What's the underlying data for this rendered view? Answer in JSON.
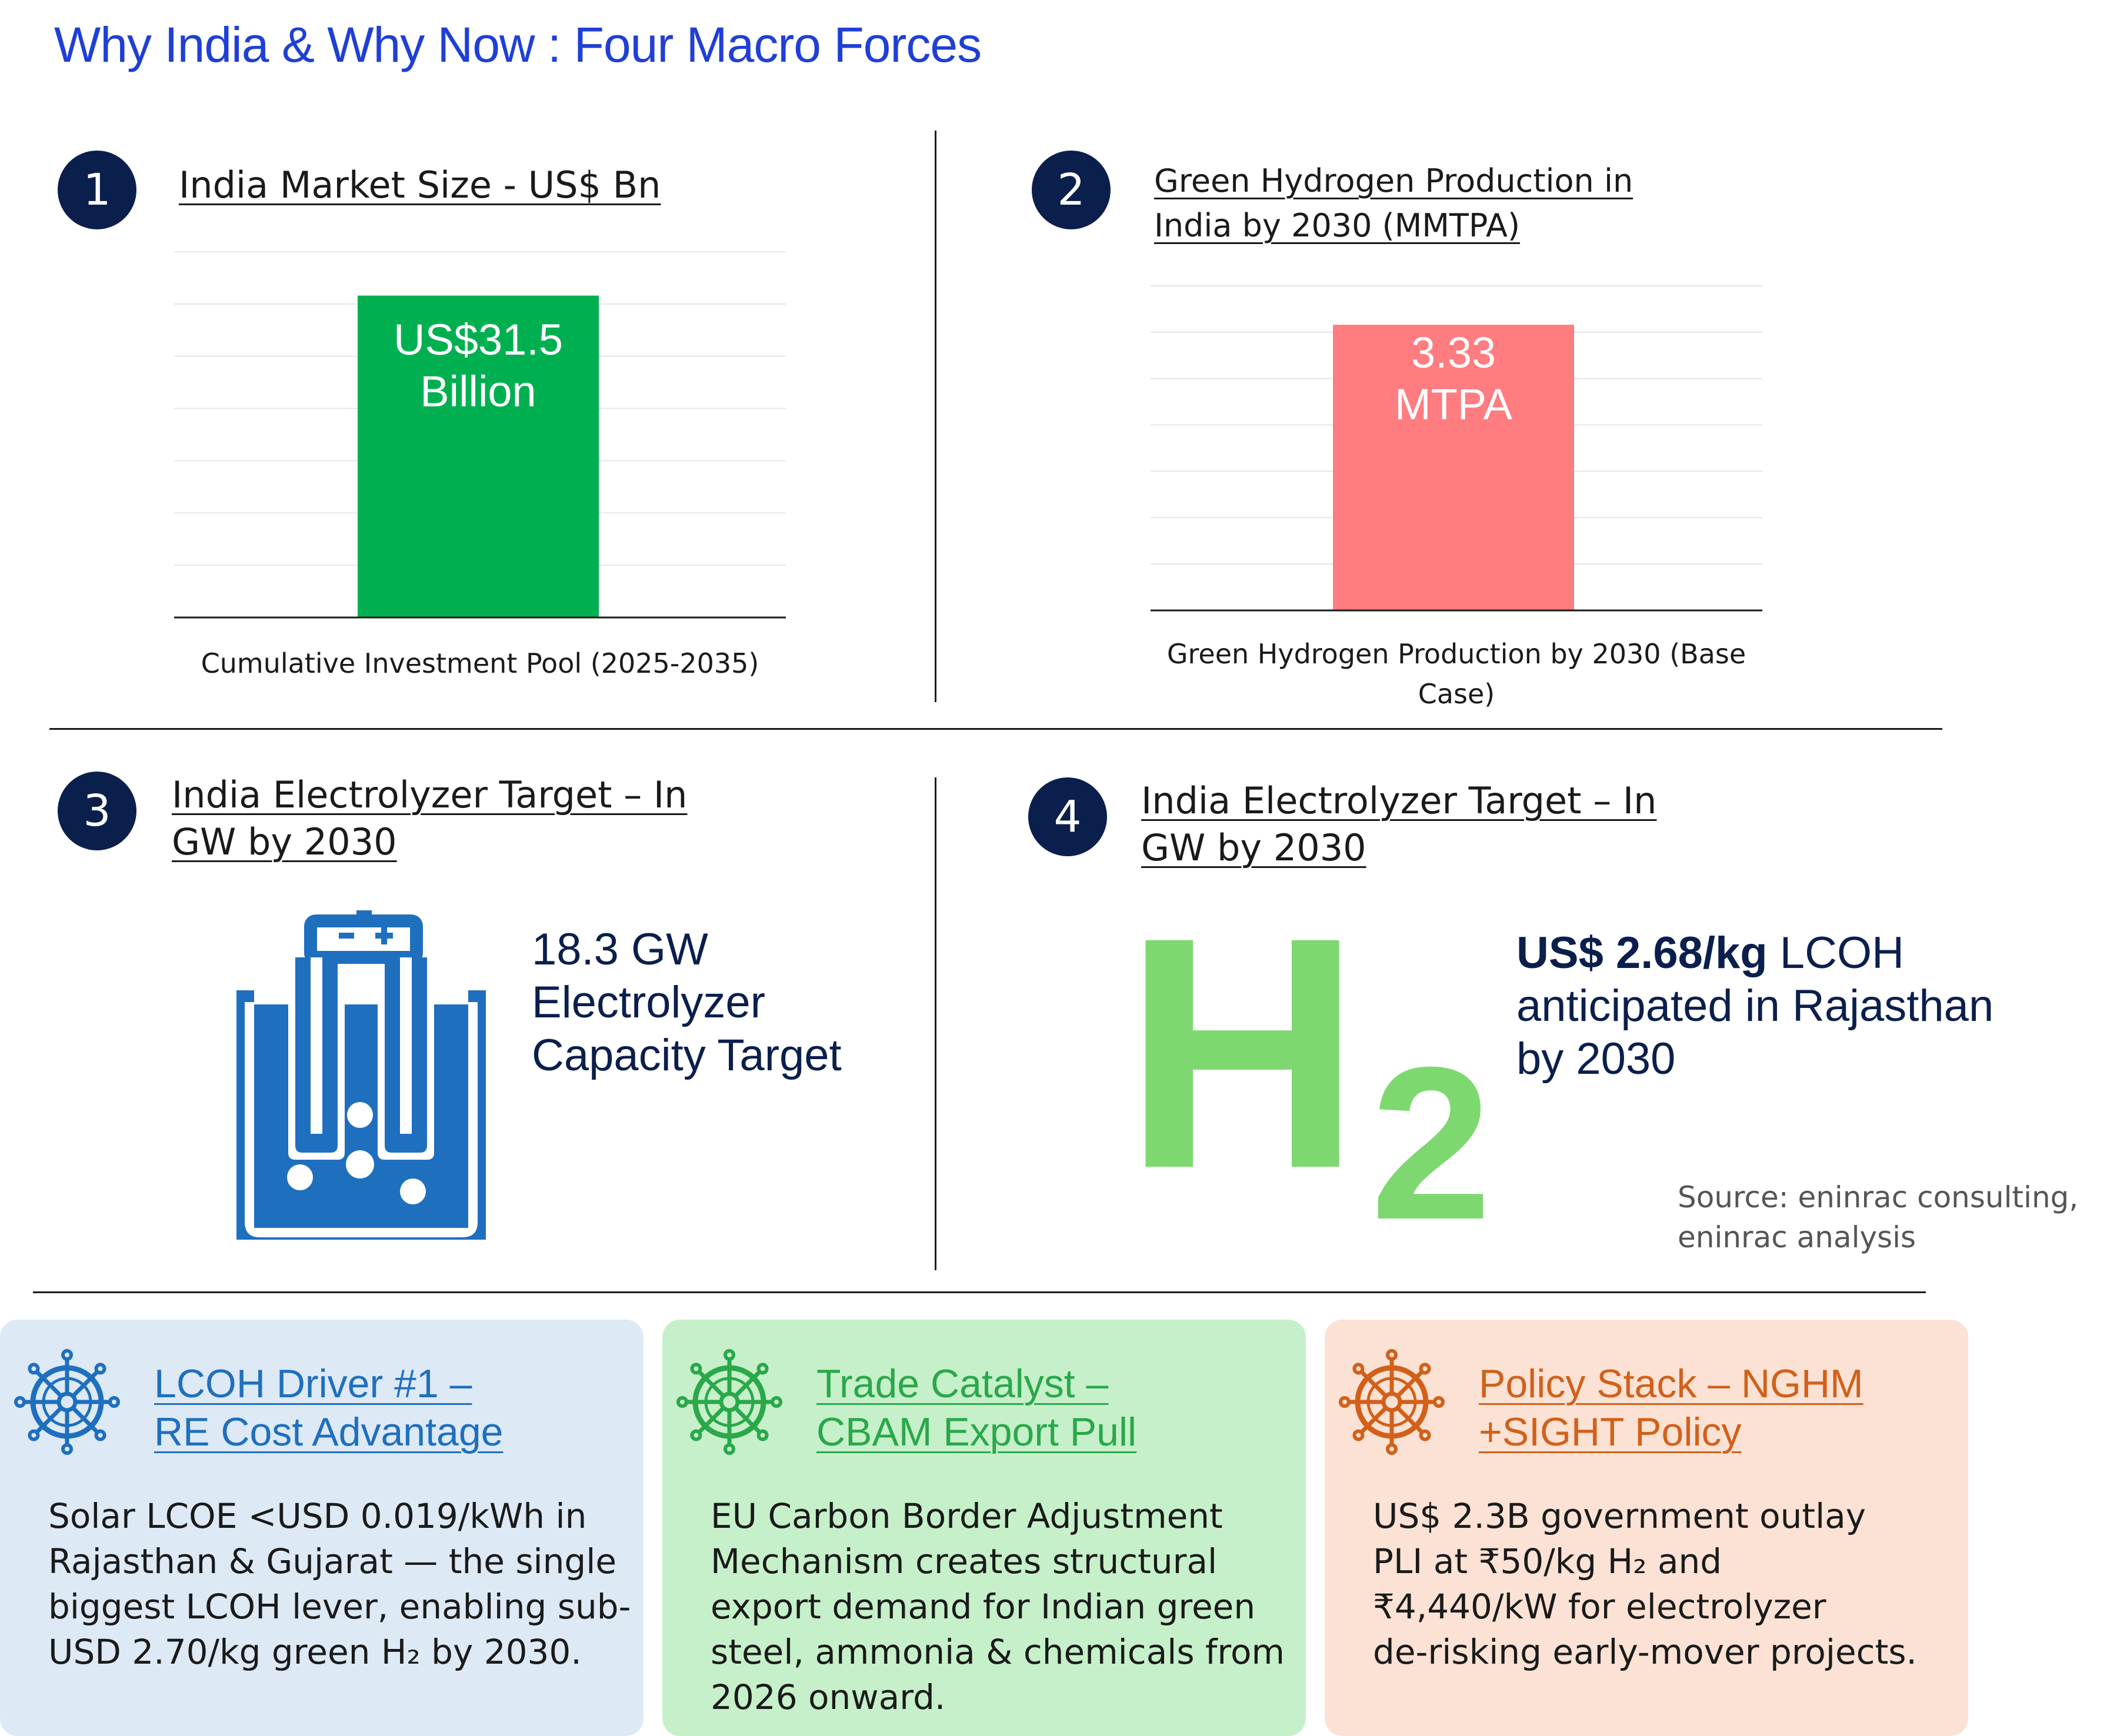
{
  "page_title": "Why India & Why Now : Four Macro Forces",
  "panels": [
    {
      "number": "1",
      "title": "India Market Size - US$ Bn"
    },
    {
      "number": "2",
      "title_line1": "Green Hydrogen Production in",
      "title_line2": "India by 2030 (MMTPA)"
    },
    {
      "number": "3",
      "title_line1": "India Electrolyzer Target – In",
      "title_line2": "GW by 2030",
      "stat_line1": "18.3 GW",
      "stat_line2": "Electrolyzer",
      "stat_line3": "Capacity Target"
    },
    {
      "number": "4",
      "title_line1": "India Electrolyzer Target – In",
      "title_line2": "GW by 2030",
      "stat_lead": "US$ 2.68/kg",
      "stat_tail": " LCOH",
      "stat_line2": "anticipated in Rajasthan",
      "stat_line3": "by 2030",
      "h2_h": "H",
      "h2_2": "2",
      "source_line1": "Source: eninrac consulting,",
      "source_line2": "eninrac analysis"
    }
  ],
  "chart_data": [
    {
      "type": "bar",
      "categories": [
        "Cumulative Investment Pool (2025-2035)"
      ],
      "values": [
        31.5
      ],
      "data_label_line1": "US$31.5",
      "data_label_line2": "Billion",
      "bar_color": "#00b050",
      "grid": true
    },
    {
      "type": "bar",
      "categories": [
        "Green Hydrogen Production by 2030 (Base Case)"
      ],
      "category_line1": "Green Hydrogen Production by 2030 (Base",
      "category_line2": "Case)",
      "values": [
        3.33
      ],
      "data_label_line1": "3.33",
      "data_label_line2": "MTPA",
      "bar_color": "#ff7c80",
      "grid": true
    }
  ],
  "cards": [
    {
      "title_line1": "LCOH Driver  #1 –",
      "title_line2": "RE Cost Advantage",
      "icon": "ship-wheel-icon",
      "color": "#1f6fbf",
      "bg": "#dde9f5",
      "body": [
        "Solar LCOE <USD 0.019/kWh in",
        "Rajasthan & Gujarat — the single",
        "biggest LCOH lever, enabling sub-",
        "USD 2.70/kg green H₂ by 2030."
      ]
    },
    {
      "title_line1": "Trade Catalyst –",
      "title_line2": "CBAM Export Pull",
      "icon": "ship-wheel-icon",
      "color": "#2aa84a",
      "bg": "#c6f0c9",
      "body": [
        "EU Carbon Border Adjustment",
        "Mechanism creates structural",
        "export demand for Indian green",
        "steel, ammonia & chemicals from",
        "2026 onward."
      ]
    },
    {
      "title_line1": "Policy Stack – NGHM",
      "title_line2": "+SIGHT Policy",
      "icon": "ship-wheel-icon",
      "color": "#d2601a",
      "bg": "#fbe2d4",
      "body": [
        "US$ 2.3B government outlay",
        "PLI at ₹50/kg H₂ and",
        "₹4,440/kW for electrolyzer",
        "de-risking early-mover projects."
      ]
    }
  ]
}
